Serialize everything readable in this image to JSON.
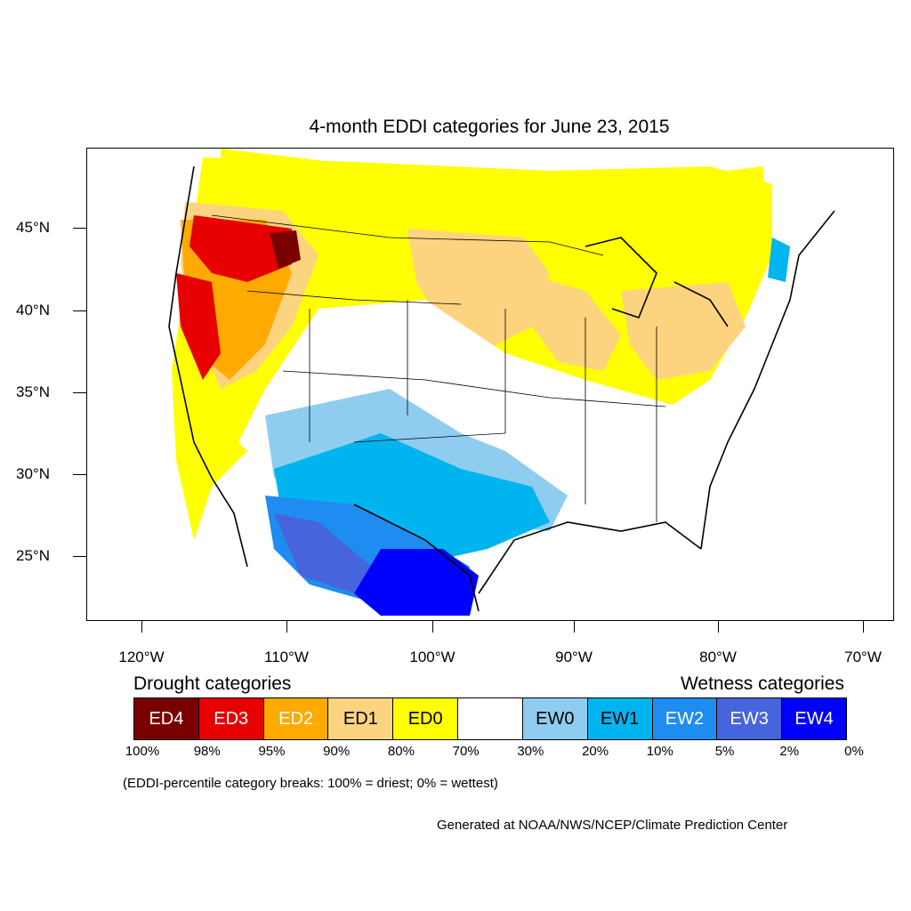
{
  "title": "4-month EDDI categories for June 23, 2015",
  "lat_labels": [
    "45°N",
    "40°N",
    "35°N",
    "30°N",
    "25°N"
  ],
  "lon_labels": [
    "120°W",
    "110°W",
    "100°W",
    "90°W",
    "80°W",
    "70°W"
  ],
  "legend": {
    "drought_heading": "Drought categories",
    "wetness_heading": "Wetness categories",
    "categories": [
      {
        "label": "ED4",
        "color": "#7a0000",
        "text_color": "#ffffff"
      },
      {
        "label": "ED3",
        "color": "#e60000",
        "text_color": "#ffffff"
      },
      {
        "label": "ED2",
        "color": "#ffaa00",
        "text_color": "#ffffff"
      },
      {
        "label": "ED1",
        "color": "#fcd37f",
        "text_color": "#000000"
      },
      {
        "label": "ED0",
        "color": "#ffff00",
        "text_color": "#000000"
      },
      {
        "label": "",
        "color": "#ffffff",
        "text_color": "#000000"
      },
      {
        "label": "EW0",
        "color": "#8fcdf0",
        "text_color": "#000000"
      },
      {
        "label": "EW1",
        "color": "#00b4f0",
        "text_color": "#000000"
      },
      {
        "label": "EW2",
        "color": "#1e8cf0",
        "text_color": "#ffffff"
      },
      {
        "label": "EW3",
        "color": "#4664dc",
        "text_color": "#ffffff"
      },
      {
        "label": "EW4",
        "color": "#0000ff",
        "text_color": "#ffffff"
      }
    ],
    "breaks": [
      "100%",
      "98%",
      "95%",
      "90%",
      "80%",
      "70%",
      "30%",
      "20%",
      "10%",
      "5%",
      "2%",
      "0%"
    ]
  },
  "note": "(EDDI-percentile category breaks: 100% = driest; 0% = wettest)",
  "credit": "Generated at NOAA/NWS/NCEP/Climate Prediction Center"
}
